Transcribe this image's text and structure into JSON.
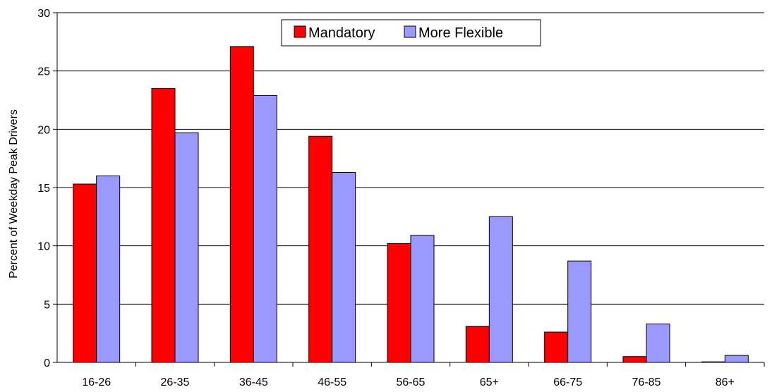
{
  "chart_data": {
    "type": "bar",
    "title": "",
    "xlabel": "",
    "ylabel": "Percent of Weekday Peak  Drivers",
    "ylim": [
      0,
      30
    ],
    "yticks": [
      0,
      5,
      10,
      15,
      20,
      25,
      30
    ],
    "grid": true,
    "legend_position": "top-center",
    "categories": [
      "16-26",
      "26-35",
      "36-45",
      "46-55",
      "56-65",
      "65+",
      "66-75",
      "76-85",
      "86+"
    ],
    "series": [
      {
        "name": "Mandatory",
        "color": "#ff0000",
        "values": [
          15.3,
          23.5,
          27.1,
          19.4,
          10.2,
          3.1,
          2.6,
          0.5,
          0.05
        ]
      },
      {
        "name": "More Flexible",
        "color": "#9999ff",
        "values": [
          16.0,
          19.7,
          22.9,
          16.3,
          10.9,
          12.5,
          8.7,
          3.3,
          0.6
        ]
      }
    ]
  }
}
